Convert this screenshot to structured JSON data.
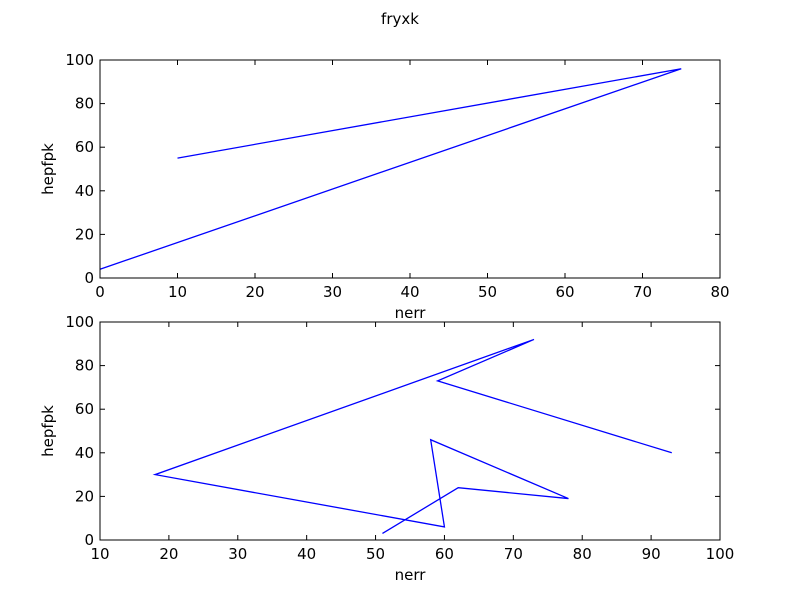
{
  "chart_data": {
    "suptitle": "fryxk",
    "charts": [
      {
        "type": "line",
        "xlabel": "nerr",
        "ylabel": "hepfpk",
        "xlim": [
          0,
          80
        ],
        "ylim": [
          0,
          100
        ],
        "xticks": [
          0,
          10,
          20,
          30,
          40,
          50,
          60,
          70,
          80
        ],
        "yticks": [
          0,
          20,
          40,
          60,
          80,
          100
        ],
        "grid": false,
        "series": [
          {
            "color": "#0000ff",
            "x": [
              10,
              75,
              0
            ],
            "y": [
              55,
              96,
              4
            ]
          }
        ]
      },
      {
        "type": "line",
        "xlabel": "nerr",
        "ylabel": "hepfpk",
        "xlim": [
          10,
          100
        ],
        "ylim": [
          0,
          100
        ],
        "xticks": [
          10,
          20,
          30,
          40,
          50,
          60,
          70,
          80,
          90,
          100
        ],
        "yticks": [
          0,
          20,
          40,
          60,
          80,
          100
        ],
        "grid": false,
        "series": [
          {
            "color": "#0000ff",
            "x": [
              93,
              59,
              73,
              18,
              60,
              58,
              78,
              62,
              51
            ],
            "y": [
              40,
              73,
              92,
              30,
              6,
              46,
              19,
              24,
              3
            ]
          }
        ]
      }
    ]
  }
}
